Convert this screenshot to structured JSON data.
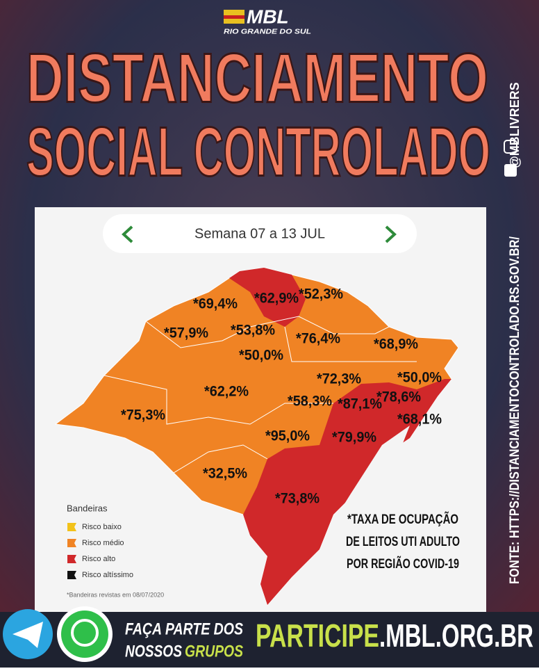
{
  "header": {
    "logo": "MBL",
    "logo_sub": "RIO GRANDE DO SUL",
    "title_line1": "DISTANCIAMENTO",
    "title_line2": "SOCIAL CONTROLADO",
    "social": "@MBLIVRERS"
  },
  "source": "FONTE: HTTPS://DISTANCIAMENTOCONTROLADO.RS.GOV.BR/",
  "map": {
    "week": "Semana 07 a 13 JUL",
    "regions": [
      "*69,4%",
      "*62,9%",
      "*52,3%",
      "*57,9%",
      "*53,8%",
      "*76,4%",
      "*50,0%",
      "*68,9%",
      "*62,2%",
      "*72,3%",
      "*50,0%",
      "*75,3%",
      "*58,3%",
      "*87,1%",
      "*78,6%",
      "*68,1%",
      "*95,0%",
      "*79,9%",
      "*32,5%",
      "*73,8%"
    ],
    "legend": {
      "title": "Bandeiras",
      "items": [
        "Risco baixo",
        "Risco médio",
        "Risco alto",
        "Risco altíssimo"
      ]
    },
    "note": "*Bandeiras revistas em 08/07/2020",
    "caption": [
      "*TAXA DE OCUPAÇÃO",
      "DE LEITOS UTI ADULTO",
      "POR REGIÃO COVID-19"
    ]
  },
  "footer": {
    "join_line1": "FAÇA PARTE DOS",
    "join_line2a": "NOSSOS",
    "join_line2b": "GRUPOS",
    "site_a": "PARTICIPE",
    "site_b": ".MBL.ORG.BR"
  }
}
